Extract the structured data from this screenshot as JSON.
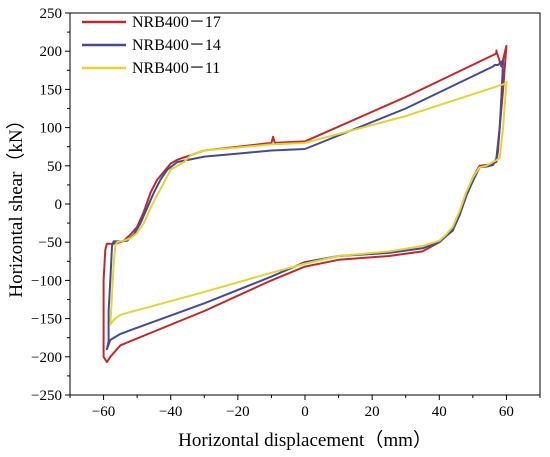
{
  "chart_data": {
    "type": "line",
    "title": "",
    "xlabel": "Horizontal displacement（mm）",
    "ylabel": "Horizontal shear（kN）",
    "xlim": [
      -70,
      70
    ],
    "ylim": [
      -250,
      250
    ],
    "xticks": [
      -60,
      -40,
      -20,
      0,
      20,
      40,
      60
    ],
    "yticks": [
      -250,
      -200,
      -150,
      -100,
      -50,
      0,
      50,
      100,
      150,
      200,
      250
    ],
    "xtick_labels": [
      "−60",
      "−40",
      "−20",
      "0",
      "20",
      "40",
      "60"
    ],
    "ytick_labels": [
      "−250",
      "−200",
      "−150",
      "−100",
      "−50",
      "0",
      "50",
      "100",
      "150",
      "200",
      "250"
    ],
    "grid": false,
    "legend_position": "top-left",
    "series": [
      {
        "name": "NRB400－17",
        "color": "#c0282c",
        "x": [
          0,
          30,
          57,
          57,
          57,
          58.5,
          60,
          59,
          58,
          57.5,
          57,
          56,
          54,
          52,
          50,
          48,
          46,
          44,
          42,
          40,
          35,
          25,
          10,
          0,
          -10,
          -30,
          -55,
          -58,
          -59,
          -60,
          -60,
          -60,
          -59.5,
          -59,
          -57,
          -56,
          -55,
          -54,
          -52,
          -50,
          -48,
          -46,
          -44,
          -40,
          -38,
          -30,
          -20,
          -10,
          -9.5,
          -9,
          0
        ],
        "y": [
          82,
          140,
          197,
          201,
          200,
          180,
          207,
          150,
          100,
          70,
          55,
          53,
          51,
          50,
          35,
          10,
          -15,
          -32,
          -42,
          -50,
          -62,
          -68,
          -73,
          -82,
          -100,
          -140,
          -185,
          -200,
          -207,
          -200,
          -150,
          -100,
          -60,
          -52,
          -52,
          -51,
          -50,
          -48,
          -40,
          -30,
          -10,
          15,
          32,
          53,
          58,
          70,
          75,
          80,
          88,
          80,
          82
        ]
      },
      {
        "name": "NRB400－14",
        "color": "#434a96",
        "x": [
          0,
          30,
          56,
          56.5,
          57.5,
          59,
          58.5,
          58,
          57,
          56,
          54,
          52,
          50,
          48,
          46,
          44,
          42,
          40,
          35,
          25,
          10,
          0,
          -10,
          -30,
          -55,
          -58,
          -59,
          -58.5,
          -58.5,
          -58,
          -57.5,
          -57,
          -55,
          -53,
          -51,
          -49,
          -47,
          -45,
          -43,
          -41,
          -38,
          -30,
          -20,
          -10,
          0
        ],
        "y": [
          72,
          125,
          180,
          182,
          182,
          188,
          140,
          100,
          60,
          51,
          49,
          48,
          30,
          10,
          -15,
          -35,
          -42,
          -50,
          -58,
          -64,
          -68,
          -76,
          -95,
          -130,
          -170,
          -178,
          -190,
          -180,
          -140,
          -100,
          -55,
          -49,
          -49,
          -48,
          -40,
          -25,
          -5,
          15,
          32,
          45,
          55,
          62,
          66,
          70,
          72
        ]
      },
      {
        "name": "NRB400－11",
        "color": "#e3d333",
        "x": [
          0,
          30,
          60,
          60,
          59.5,
          59,
          58,
          56,
          54,
          52,
          50,
          48,
          46,
          44,
          42,
          40,
          35,
          25,
          10,
          0,
          -10,
          -30,
          -55,
          -57,
          -58,
          -57.5,
          -57,
          -56.5,
          -56,
          -54,
          -52,
          -50,
          -48,
          -46,
          -44,
          -42,
          -40,
          -36,
          -34,
          -30,
          -20,
          -10,
          0
        ],
        "y": [
          80,
          115,
          158,
          160,
          130,
          100,
          60,
          55,
          50,
          48,
          35,
          15,
          -10,
          -30,
          -40,
          -48,
          -55,
          -62,
          -68,
          -78,
          -90,
          -115,
          -145,
          -152,
          -158,
          -120,
          -80,
          -55,
          -50,
          -48,
          -45,
          -38,
          -25,
          -5,
          12,
          28,
          45,
          55,
          64,
          70,
          74,
          78,
          80
        ]
      }
    ]
  }
}
